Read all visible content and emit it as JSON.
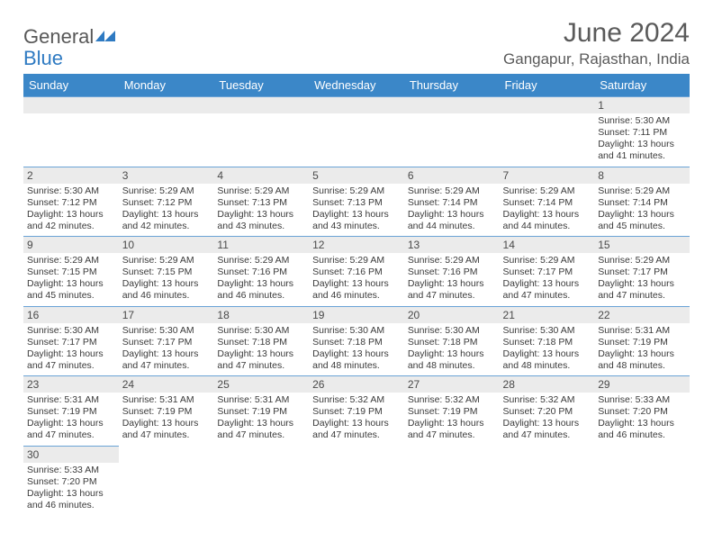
{
  "brand": {
    "general": "General",
    "blue": "Blue"
  },
  "title": "June 2024",
  "location": "Gangapur, Rajasthan, India",
  "colors": {
    "header_bg": "#3b87c8",
    "header_text": "#ffffff",
    "daynum_bg": "#ebebeb",
    "rule": "#6aa3d6",
    "text": "#3a3a3a",
    "title_text": "#5a5a5a"
  },
  "weekdays": [
    "Sunday",
    "Monday",
    "Tuesday",
    "Wednesday",
    "Thursday",
    "Friday",
    "Saturday"
  ],
  "weeks": [
    [
      null,
      null,
      null,
      null,
      null,
      null,
      {
        "n": "1",
        "sunrise": "Sunrise: 5:30 AM",
        "sunset": "Sunset: 7:11 PM",
        "daylight": "Daylight: 13 hours and 41 minutes."
      }
    ],
    [
      {
        "n": "2",
        "sunrise": "Sunrise: 5:30 AM",
        "sunset": "Sunset: 7:12 PM",
        "daylight": "Daylight: 13 hours and 42 minutes."
      },
      {
        "n": "3",
        "sunrise": "Sunrise: 5:29 AM",
        "sunset": "Sunset: 7:12 PM",
        "daylight": "Daylight: 13 hours and 42 minutes."
      },
      {
        "n": "4",
        "sunrise": "Sunrise: 5:29 AM",
        "sunset": "Sunset: 7:13 PM",
        "daylight": "Daylight: 13 hours and 43 minutes."
      },
      {
        "n": "5",
        "sunrise": "Sunrise: 5:29 AM",
        "sunset": "Sunset: 7:13 PM",
        "daylight": "Daylight: 13 hours and 43 minutes."
      },
      {
        "n": "6",
        "sunrise": "Sunrise: 5:29 AM",
        "sunset": "Sunset: 7:14 PM",
        "daylight": "Daylight: 13 hours and 44 minutes."
      },
      {
        "n": "7",
        "sunrise": "Sunrise: 5:29 AM",
        "sunset": "Sunset: 7:14 PM",
        "daylight": "Daylight: 13 hours and 44 minutes."
      },
      {
        "n": "8",
        "sunrise": "Sunrise: 5:29 AM",
        "sunset": "Sunset: 7:14 PM",
        "daylight": "Daylight: 13 hours and 45 minutes."
      }
    ],
    [
      {
        "n": "9",
        "sunrise": "Sunrise: 5:29 AM",
        "sunset": "Sunset: 7:15 PM",
        "daylight": "Daylight: 13 hours and 45 minutes."
      },
      {
        "n": "10",
        "sunrise": "Sunrise: 5:29 AM",
        "sunset": "Sunset: 7:15 PM",
        "daylight": "Daylight: 13 hours and 46 minutes."
      },
      {
        "n": "11",
        "sunrise": "Sunrise: 5:29 AM",
        "sunset": "Sunset: 7:16 PM",
        "daylight": "Daylight: 13 hours and 46 minutes."
      },
      {
        "n": "12",
        "sunrise": "Sunrise: 5:29 AM",
        "sunset": "Sunset: 7:16 PM",
        "daylight": "Daylight: 13 hours and 46 minutes."
      },
      {
        "n": "13",
        "sunrise": "Sunrise: 5:29 AM",
        "sunset": "Sunset: 7:16 PM",
        "daylight": "Daylight: 13 hours and 47 minutes."
      },
      {
        "n": "14",
        "sunrise": "Sunrise: 5:29 AM",
        "sunset": "Sunset: 7:17 PM",
        "daylight": "Daylight: 13 hours and 47 minutes."
      },
      {
        "n": "15",
        "sunrise": "Sunrise: 5:29 AM",
        "sunset": "Sunset: 7:17 PM",
        "daylight": "Daylight: 13 hours and 47 minutes."
      }
    ],
    [
      {
        "n": "16",
        "sunrise": "Sunrise: 5:30 AM",
        "sunset": "Sunset: 7:17 PM",
        "daylight": "Daylight: 13 hours and 47 minutes."
      },
      {
        "n": "17",
        "sunrise": "Sunrise: 5:30 AM",
        "sunset": "Sunset: 7:17 PM",
        "daylight": "Daylight: 13 hours and 47 minutes."
      },
      {
        "n": "18",
        "sunrise": "Sunrise: 5:30 AM",
        "sunset": "Sunset: 7:18 PM",
        "daylight": "Daylight: 13 hours and 47 minutes."
      },
      {
        "n": "19",
        "sunrise": "Sunrise: 5:30 AM",
        "sunset": "Sunset: 7:18 PM",
        "daylight": "Daylight: 13 hours and 48 minutes."
      },
      {
        "n": "20",
        "sunrise": "Sunrise: 5:30 AM",
        "sunset": "Sunset: 7:18 PM",
        "daylight": "Daylight: 13 hours and 48 minutes."
      },
      {
        "n": "21",
        "sunrise": "Sunrise: 5:30 AM",
        "sunset": "Sunset: 7:18 PM",
        "daylight": "Daylight: 13 hours and 48 minutes."
      },
      {
        "n": "22",
        "sunrise": "Sunrise: 5:31 AM",
        "sunset": "Sunset: 7:19 PM",
        "daylight": "Daylight: 13 hours and 48 minutes."
      }
    ],
    [
      {
        "n": "23",
        "sunrise": "Sunrise: 5:31 AM",
        "sunset": "Sunset: 7:19 PM",
        "daylight": "Daylight: 13 hours and 47 minutes."
      },
      {
        "n": "24",
        "sunrise": "Sunrise: 5:31 AM",
        "sunset": "Sunset: 7:19 PM",
        "daylight": "Daylight: 13 hours and 47 minutes."
      },
      {
        "n": "25",
        "sunrise": "Sunrise: 5:31 AM",
        "sunset": "Sunset: 7:19 PM",
        "daylight": "Daylight: 13 hours and 47 minutes."
      },
      {
        "n": "26",
        "sunrise": "Sunrise: 5:32 AM",
        "sunset": "Sunset: 7:19 PM",
        "daylight": "Daylight: 13 hours and 47 minutes."
      },
      {
        "n": "27",
        "sunrise": "Sunrise: 5:32 AM",
        "sunset": "Sunset: 7:19 PM",
        "daylight": "Daylight: 13 hours and 47 minutes."
      },
      {
        "n": "28",
        "sunrise": "Sunrise: 5:32 AM",
        "sunset": "Sunset: 7:20 PM",
        "daylight": "Daylight: 13 hours and 47 minutes."
      },
      {
        "n": "29",
        "sunrise": "Sunrise: 5:33 AM",
        "sunset": "Sunset: 7:20 PM",
        "daylight": "Daylight: 13 hours and 46 minutes."
      }
    ],
    [
      {
        "n": "30",
        "sunrise": "Sunrise: 5:33 AM",
        "sunset": "Sunset: 7:20 PM",
        "daylight": "Daylight: 13 hours and 46 minutes."
      },
      null,
      null,
      null,
      null,
      null,
      null
    ]
  ]
}
